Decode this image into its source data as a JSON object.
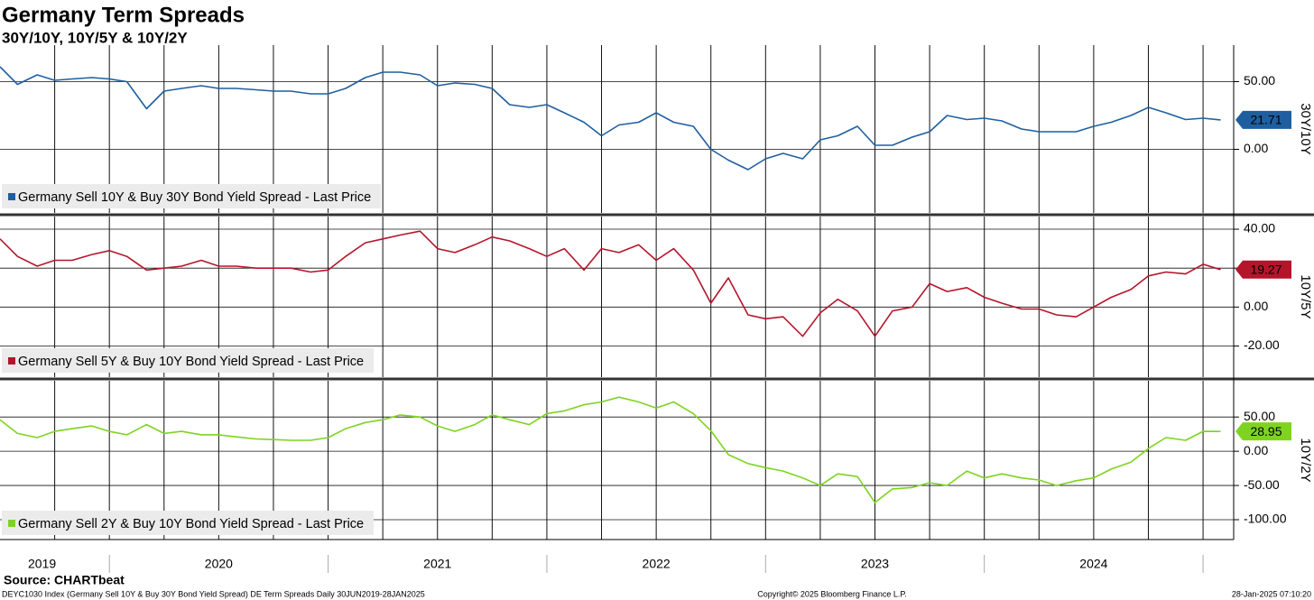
{
  "header": {
    "title": "Germany Term Spreads",
    "subtitle": "30Y/10Y, 10Y/5Y & 10Y/2Y"
  },
  "footer": {
    "source": "Source: CHARTbeat",
    "description": "DEYC1030 Index (Germany Sell 10Y & Buy 30Y Bond Yield Spread) DE Term Spreads  Daily 30JUN2019-28JAN2025",
    "copyright": "Copyright© 2025 Bloomberg Finance L.P.",
    "timestamp": "28-Jan-2025 07:10:20"
  },
  "chart_data": [
    {
      "type": "line",
      "ylabel": "30Y/10Y",
      "x": [
        2019.5,
        2019.58,
        2019.67,
        2019.75,
        2019.83,
        2019.92,
        2020.0,
        2020.08,
        2020.17,
        2020.25,
        2020.33,
        2020.42,
        2020.5,
        2020.58,
        2020.67,
        2020.75,
        2020.83,
        2020.92,
        2021.0,
        2021.08,
        2021.17,
        2021.25,
        2021.33,
        2021.42,
        2021.5,
        2021.58,
        2021.67,
        2021.75,
        2021.83,
        2021.92,
        2022.0,
        2022.08,
        2022.17,
        2022.25,
        2022.33,
        2022.42,
        2022.5,
        2022.58,
        2022.67,
        2022.75,
        2022.83,
        2022.92,
        2023.0,
        2023.08,
        2023.17,
        2023.25,
        2023.33,
        2023.42,
        2023.5,
        2023.58,
        2023.67,
        2023.75,
        2023.83,
        2023.92,
        2024.0,
        2024.08,
        2024.17,
        2024.25,
        2024.33,
        2024.42,
        2024.5,
        2024.58,
        2024.67,
        2024.75,
        2024.83,
        2024.92,
        2025.0,
        2025.08
      ],
      "xlim": [
        2019.5,
        2025.14
      ],
      "ylim": [
        -47,
        77
      ],
      "yticks": [
        {
          "value": 50,
          "label": "50.00"
        },
        {
          "value": 0,
          "label": "0.00"
        }
      ],
      "series": [
        {
          "name": "Germany Sell 10Y & Buy 30Y Bond Yield Spread - Last Price",
          "color": "#1f5fa0",
          "values": [
            61,
            48,
            55,
            51,
            52,
            53,
            52,
            50,
            30,
            43,
            45,
            47,
            45,
            45,
            44,
            43,
            43,
            41,
            41,
            45,
            53,
            57,
            57,
            55,
            47,
            49,
            48,
            45,
            33,
            31,
            33,
            27,
            20,
            10,
            18,
            20,
            27,
            20,
            17,
            0,
            -8,
            -15,
            -7,
            -3,
            -7,
            7,
            10,
            17,
            3,
            3,
            9,
            13,
            25,
            22,
            23,
            21,
            15,
            13,
            13,
            13,
            17,
            20,
            25,
            31,
            27,
            22,
            23,
            21.71
          ]
        }
      ]
    },
    {
      "type": "line",
      "ylabel": "10Y/5Y",
      "x": [
        2019.5,
        2019.58,
        2019.67,
        2019.75,
        2019.83,
        2019.92,
        2020.0,
        2020.08,
        2020.17,
        2020.25,
        2020.33,
        2020.42,
        2020.5,
        2020.58,
        2020.67,
        2020.75,
        2020.83,
        2020.92,
        2021.0,
        2021.08,
        2021.17,
        2021.25,
        2021.33,
        2021.42,
        2021.5,
        2021.58,
        2021.67,
        2021.75,
        2021.83,
        2021.92,
        2022.0,
        2022.08,
        2022.17,
        2022.25,
        2022.33,
        2022.42,
        2022.5,
        2022.58,
        2022.67,
        2022.75,
        2022.83,
        2022.92,
        2023.0,
        2023.08,
        2023.17,
        2023.25,
        2023.33,
        2023.42,
        2023.5,
        2023.58,
        2023.67,
        2023.75,
        2023.83,
        2023.92,
        2024.0,
        2024.08,
        2024.17,
        2024.25,
        2024.33,
        2024.42,
        2024.5,
        2024.58,
        2024.67,
        2024.75,
        2024.83,
        2024.92,
        2025.0,
        2025.08
      ],
      "xlim": [
        2019.5,
        2025.14
      ],
      "ylim": [
        -36,
        46.5
      ],
      "yticks": [
        {
          "value": 40,
          "label": "40.00"
        },
        {
          "value": 20,
          "label": "20.00"
        },
        {
          "value": 0,
          "label": "0.00"
        },
        {
          "value": -20,
          "label": "-20.00"
        }
      ],
      "series": [
        {
          "name": "Germany Sell 5Y & Buy 10Y Bond Yield Spread - Last Price",
          "color": "#b5152b",
          "values": [
            35,
            26,
            21,
            24,
            24,
            27,
            29,
            26,
            19,
            20,
            21,
            24,
            21,
            21,
            20,
            20,
            20,
            18,
            19,
            26,
            33,
            35,
            37,
            39,
            30,
            28,
            32,
            36,
            34,
            30,
            26,
            30,
            19,
            30,
            28,
            32,
            24,
            30,
            19,
            2,
            15,
            -4,
            -6,
            -5,
            -15,
            -3,
            4,
            -2,
            -15,
            -2,
            0,
            12,
            8,
            10,
            5,
            2,
            -1,
            -1,
            -4,
            -5,
            0,
            5,
            9,
            16,
            18,
            17,
            22,
            19.27
          ]
        }
      ]
    },
    {
      "type": "line",
      "ylabel": "10Y/2Y",
      "x": [
        2019.5,
        2019.58,
        2019.67,
        2019.75,
        2019.83,
        2019.92,
        2020.0,
        2020.08,
        2020.17,
        2020.25,
        2020.33,
        2020.42,
        2020.5,
        2020.58,
        2020.67,
        2020.75,
        2020.83,
        2020.92,
        2021.0,
        2021.08,
        2021.17,
        2021.25,
        2021.33,
        2021.42,
        2021.5,
        2021.58,
        2021.67,
        2021.75,
        2021.83,
        2021.92,
        2022.0,
        2022.08,
        2022.17,
        2022.25,
        2022.33,
        2022.42,
        2022.5,
        2022.58,
        2022.67,
        2022.75,
        2022.83,
        2022.92,
        2023.0,
        2023.08,
        2023.17,
        2023.25,
        2023.33,
        2023.42,
        2023.5,
        2023.58,
        2023.67,
        2023.75,
        2023.83,
        2023.92,
        2024.0,
        2024.08,
        2024.17,
        2024.25,
        2024.33,
        2024.42,
        2024.5,
        2024.58,
        2024.67,
        2024.75,
        2024.83,
        2024.92,
        2025.0,
        2025.08
      ],
      "xlim": [
        2019.5,
        2025.14
      ],
      "ylim": [
        -129,
        103
      ],
      "xticks": [
        2019,
        2020,
        2021,
        2022,
        2023,
        2024
      ],
      "yticks": [
        {
          "value": 50,
          "label": "50.00"
        },
        {
          "value": 0,
          "label": "0.00"
        },
        {
          "value": -50,
          "label": "-50.00"
        },
        {
          "value": -100,
          "label": "-100.00"
        }
      ],
      "series": [
        {
          "name": "Germany Sell 2Y & Buy 10Y Bond Yield Spread - Last Price",
          "color": "#7ed321",
          "values": [
            46,
            26,
            20,
            29,
            33,
            37,
            29,
            24,
            39,
            26,
            29,
            24,
            24,
            21,
            18,
            17,
            16,
            16,
            20,
            33,
            42,
            46,
            53,
            50,
            37,
            29,
            39,
            53,
            46,
            39,
            55,
            59,
            68,
            72,
            79,
            72,
            63,
            72,
            55,
            30,
            -5,
            -18,
            -24,
            -29,
            -39,
            -50,
            -33,
            -37,
            -75,
            -55,
            -53,
            -46,
            -50,
            -29,
            -39,
            -33,
            -39,
            -42,
            -50,
            -43,
            -39,
            -26,
            -16,
            4,
            20,
            16,
            29,
            28.95
          ]
        }
      ]
    }
  ]
}
